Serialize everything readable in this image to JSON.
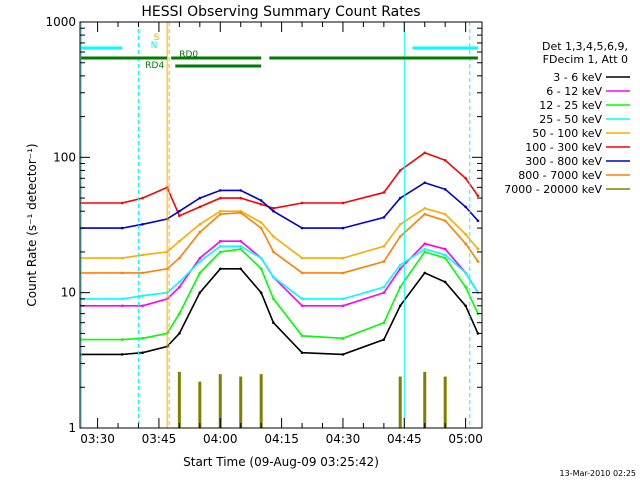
{
  "chart_data": {
    "type": "line",
    "title": "HESSI Observing Summary Count Rates",
    "xlabel": "Start Time (09-Aug-09 03:25:42)",
    "ylabel": "Count Rate (s⁻¹ detector⁻¹)",
    "yscale": "log",
    "ylim": [
      1,
      1000
    ],
    "xlim": [
      "03:25:42",
      "05:04:00"
    ],
    "x_ticks": [
      "03:30",
      "03:45",
      "04:00",
      "04:15",
      "04:30",
      "04:45",
      "05:00"
    ],
    "y_ticks": [
      "1",
      "10",
      "100",
      "1000"
    ],
    "grid": false,
    "legend_position": "right",
    "legend_header": [
      "Det 1,3,4,5,6,9,",
      "FDecim 1, Att 0"
    ],
    "timestamp": "13-Mar-2010 02:25",
    "x": [
      "03:26",
      "03:36",
      "03:41",
      "03:47",
      "03:50",
      "03:55",
      "04:00",
      "04:05",
      "04:10",
      "04:13",
      "04:20",
      "04:30",
      "04:40",
      "04:44",
      "04:50",
      "04:55",
      "05:00",
      "05:03"
    ],
    "series": [
      {
        "name": "3 - 6 keV",
        "color": "#000000",
        "values": [
          3.5,
          3.5,
          3.6,
          4,
          5,
          10,
          15,
          15,
          10,
          6,
          3.6,
          3.5,
          4.5,
          8,
          14,
          12,
          8,
          5
        ]
      },
      {
        "name": "6 - 12 keV",
        "color": "#ff00ff",
        "values": [
          8,
          8,
          8,
          9,
          11,
          18,
          24,
          24,
          18,
          13,
          8,
          8,
          10,
          15,
          23,
          21,
          14,
          10
        ]
      },
      {
        "name": "12 - 25 keV",
        "color": "#00ff00",
        "values": [
          4.5,
          4.5,
          4.6,
          5,
          7,
          14,
          20,
          21,
          15,
          9,
          4.8,
          4.6,
          6,
          11,
          20,
          18,
          11,
          7
        ]
      },
      {
        "name": "25 - 50 keV",
        "color": "#00ffff",
        "values": [
          9,
          9,
          9.5,
          10,
          12,
          17,
          22,
          22,
          18,
          13,
          9,
          9,
          11,
          16,
          21,
          19,
          14,
          10
        ]
      },
      {
        "name": "50 - 100 keV",
        "color": "#ffaa00",
        "values": [
          18,
          18,
          19,
          20,
          24,
          32,
          40,
          40,
          33,
          26,
          18,
          18,
          22,
          32,
          42,
          38,
          27,
          21
        ]
      },
      {
        "name": "100 - 300 keV",
        "color": "#ff0000",
        "values": [
          46,
          46,
          50,
          60,
          37,
          43,
          50,
          50,
          45,
          42,
          46,
          46,
          55,
          80,
          108,
          95,
          70,
          52
        ]
      },
      {
        "name": "300 - 800 keV",
        "color": "#0000cc",
        "values": [
          30,
          30,
          32,
          35,
          40,
          50,
          57,
          57,
          48,
          40,
          30,
          30,
          36,
          50,
          65,
          58,
          43,
          34
        ]
      },
      {
        "name": "800 - 7000 keV",
        "color": "#ff8000",
        "values": [
          14,
          14,
          14,
          15,
          18,
          28,
          38,
          39,
          30,
          20,
          14,
          14,
          17,
          26,
          38,
          34,
          23,
          17
        ]
      },
      {
        "name": "7000 - 20000 keV",
        "color": "#808000",
        "values": [
          0,
          0,
          0,
          0,
          2.6,
          2.2,
          2.5,
          2.4,
          2.5,
          0,
          0,
          0,
          0,
          2.4,
          2.6,
          2.4,
          0,
          0
        ]
      }
    ],
    "flag_bars": [
      {
        "label": "",
        "color": "#00ffff",
        "segments": [
          [
            "03:26",
            "03:36"
          ],
          [
            "04:47",
            "05:03"
          ]
        ]
      },
      {
        "label": "RD0",
        "color": "#007a00",
        "segments": [
          [
            "03:26",
            "03:47"
          ],
          [
            "03:48",
            "04:10"
          ],
          [
            "04:12",
            "05:03"
          ]
        ]
      },
      {
        "label": "RD4",
        "color": "#007a00",
        "segments": [
          [
            "03:49",
            "04:10"
          ]
        ]
      }
    ],
    "flag_letters": [
      {
        "text": "S",
        "color": "#ffaa00"
      },
      {
        "text": "N",
        "color": "#00ffff"
      }
    ],
    "markers": [
      {
        "time": "03:26",
        "color": "#00ffff",
        "style": "solid"
      },
      {
        "time": "03:40",
        "color": "#00ffff",
        "style": "dashed"
      },
      {
        "time": "03:47",
        "color": "#ffaa00",
        "style": "solid"
      },
      {
        "time": "03:47",
        "color": "#ffaa00",
        "style": "dashed"
      },
      {
        "time": "04:45",
        "color": "#00ffff",
        "style": "solid"
      },
      {
        "time": "05:01",
        "color": "#00ffff",
        "style": "dashed"
      }
    ]
  }
}
